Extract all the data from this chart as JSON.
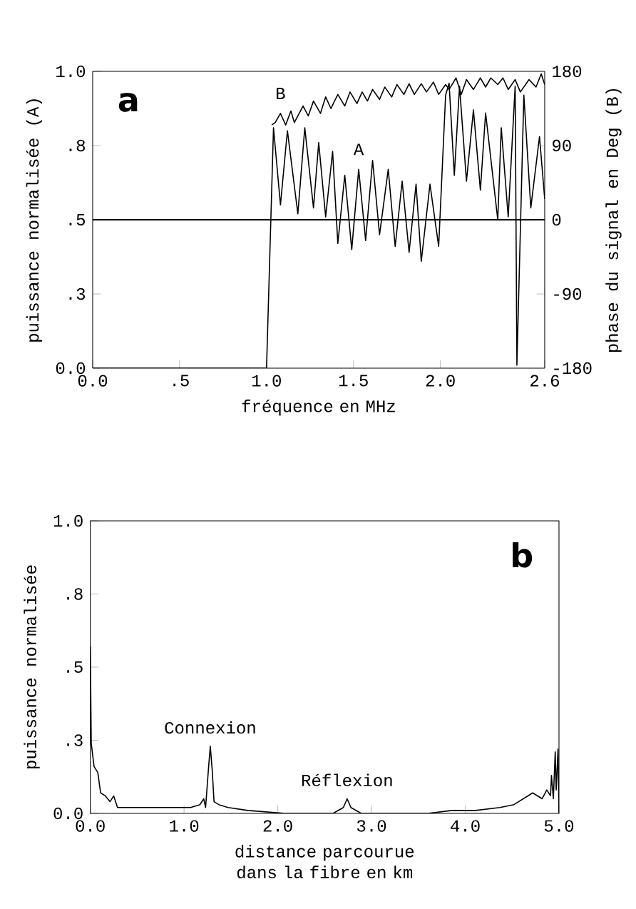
{
  "chart_data": [
    {
      "type": "line",
      "xlabel": "fréquence en MHz",
      "ylabel": "puissance normalisée (A)",
      "y2label": "phase du signal en Deg (B)",
      "xlim": [
        0,
        2.6
      ],
      "xticks": [
        {
          "value": 0,
          "label": "0.0"
        },
        {
          "value": 0.5,
          "label": ".5"
        },
        {
          "value": 1,
          "label": "1.0"
        },
        {
          "value": 1.5,
          "label": "1.5"
        },
        {
          "value": 2,
          "label": "2.0"
        },
        {
          "value": 2.6,
          "label": "2.6"
        }
      ],
      "ylim": [
        0,
        1
      ],
      "yticks": [
        {
          "value": 0,
          "label": "0.0"
        },
        {
          "value": 0.25,
          "label": ".3"
        },
        {
          "value": 0.5,
          "label": ".5"
        },
        {
          "value": 0.75,
          "label": ".8"
        },
        {
          "value": 1,
          "label": "1.0"
        }
      ],
      "y2lim": [
        -180,
        180
      ],
      "y2ticks": [
        -180,
        -90,
        0,
        90,
        180
      ],
      "ref_lines": [
        {
          "axis": "y2",
          "value": 0
        }
      ],
      "annotations": [
        "a"
      ],
      "marker": "none",
      "series": [
        {
          "name": "A",
          "color": "#000000",
          "x": [
            0,
            1.0,
            1.04,
            1.08,
            1.12,
            1.18,
            1.22,
            1.27,
            1.3,
            1.34,
            1.38,
            1.41,
            1.45,
            1.49,
            1.53,
            1.57,
            1.61,
            1.65,
            1.7,
            1.74,
            1.78,
            1.82,
            1.86,
            1.89,
            1.94,
            1.99,
            2.03,
            2.05,
            2.08,
            2.11,
            2.15,
            2.19,
            2.23,
            2.26,
            2.33,
            2.35,
            2.39,
            2.43,
            2.44,
            2.48,
            2.52,
            2.57,
            2.6
          ],
          "values": [
            0,
            0,
            0.81,
            0.55,
            0.8,
            0.52,
            0.81,
            0.54,
            0.76,
            0.51,
            0.73,
            0.42,
            0.65,
            0.4,
            0.67,
            0.43,
            0.7,
            0.45,
            0.67,
            0.41,
            0.63,
            0.39,
            0.62,
            0.36,
            0.62,
            0.41,
            0.92,
            0.96,
            0.65,
            0.95,
            0.63,
            0.87,
            0.6,
            0.86,
            0.5,
            0.81,
            0.51,
            0.95,
            0.01,
            0.92,
            0.54,
            0.78,
            0.57
          ]
        },
        {
          "name": "B",
          "color": "#000000",
          "axis": "y2",
          "x": [
            1.03,
            1.05,
            1.08,
            1.11,
            1.14,
            1.16,
            1.21,
            1.24,
            1.27,
            1.31,
            1.34,
            1.37,
            1.41,
            1.45,
            1.48,
            1.52,
            1.55,
            1.58,
            1.61,
            1.65,
            1.68,
            1.72,
            1.75,
            1.79,
            1.82,
            1.85,
            1.89,
            1.92,
            1.96,
            1.99,
            2.03,
            2.05,
            2.09,
            2.12,
            2.15,
            2.19,
            2.23,
            2.26,
            2.29,
            2.33,
            2.36,
            2.39,
            2.43,
            2.46,
            2.51,
            2.55,
            2.58,
            2.6
          ],
          "values": [
            115,
            118,
            129,
            115,
            132,
            118,
            138,
            126,
            144,
            129,
            149,
            135,
            152,
            138,
            155,
            141,
            155,
            144,
            158,
            146,
            161,
            149,
            164,
            152,
            165,
            152,
            165,
            155,
            167,
            152,
            164,
            158,
            172,
            152,
            170,
            158,
            172,
            161,
            172,
            164,
            172,
            158,
            170,
            155,
            170,
            161,
            177,
            164
          ]
        }
      ]
    },
    {
      "type": "line",
      "xlabel": "distance parcourue dans la fibre en km",
      "ylabel": "puissance normalisée",
      "xlim": [
        0,
        5
      ],
      "xticks": [
        {
          "value": 0,
          "label": "0.0"
        },
        {
          "value": 1,
          "label": "1.0"
        },
        {
          "value": 2,
          "label": "2.0"
        },
        {
          "value": 3,
          "label": "3.0"
        },
        {
          "value": 4,
          "label": "4.0"
        },
        {
          "value": 5,
          "label": "5.0"
        }
      ],
      "ylim": [
        0,
        1
      ],
      "yticks": [
        {
          "value": 0,
          "label": "0.0"
        },
        {
          "value": 0.25,
          "label": ".3"
        },
        {
          "value": 0.5,
          "label": ".5"
        },
        {
          "value": 0.75,
          "label": ".8"
        },
        {
          "value": 1,
          "label": "1.0"
        }
      ],
      "annotations": [
        "b",
        {
          "text": "Connexion",
          "x": 1.28,
          "y": 0.23
        },
        {
          "text": "Réflexion",
          "x": 2.74,
          "y": 0.05
        }
      ],
      "marker": "none",
      "series": [
        {
          "color": "#000000",
          "x": [
            0,
            0.01,
            0.04,
            0.08,
            0.11,
            0.16,
            0.21,
            0.25,
            0.29,
            0.46,
            0.71,
            1.07,
            1.17,
            1.21,
            1.23,
            1.26,
            1.28,
            1.3,
            1.32,
            1.37,
            1.47,
            1.68,
            2.08,
            2.59,
            2.7,
            2.74,
            2.78,
            2.89,
            3.6,
            3.86,
            4.11,
            4.37,
            4.52,
            4.62,
            4.72,
            4.82,
            4.87,
            4.91,
            4.92,
            4.94,
            4.96,
            4.97,
            4.99,
            5.0
          ],
          "values": [
            0.57,
            0.24,
            0.16,
            0.14,
            0.07,
            0.06,
            0.04,
            0.06,
            0.02,
            0.02,
            0.02,
            0.02,
            0.03,
            0.05,
            0.02,
            0.15,
            0.23,
            0.15,
            0.04,
            0.03,
            0.02,
            0.01,
            0.0,
            0.0,
            0.02,
            0.05,
            0.02,
            0.0,
            0.0,
            0.01,
            0.01,
            0.02,
            0.03,
            0.05,
            0.07,
            0.05,
            0.08,
            0.06,
            0.13,
            0.05,
            0.21,
            0.08,
            0.22,
            0.0
          ]
        }
      ]
    }
  ]
}
